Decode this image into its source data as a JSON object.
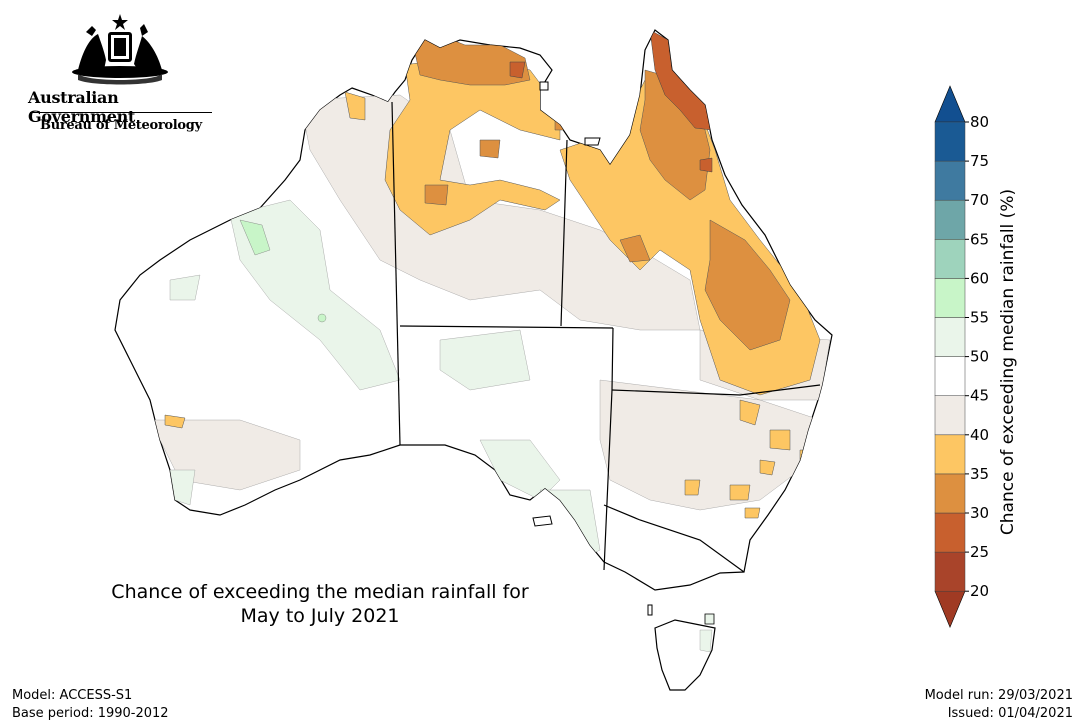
{
  "header": {
    "government": "Australian Government",
    "agency": "Bureau of Meteorology"
  },
  "map": {
    "title_line1": "Chance of exceeding the median rainfall for",
    "title_line2": "May to July 2021"
  },
  "legend": {
    "label": "Chance of exceeding median rainfall (%)",
    "ticks": [
      "20",
      "25",
      "30",
      "35",
      "40",
      "45",
      "50",
      "55",
      "60",
      "65",
      "70",
      "75",
      "80"
    ],
    "colors": [
      "#a9442a",
      "#c8602e",
      "#dd9040",
      "#fdc663",
      "#f0ebe6",
      "#ffffff",
      "#eaf5ea",
      "#c8f5c8",
      "#9ed3bc",
      "#6ea6a8",
      "#3f7aa0",
      "#1a5a94"
    ],
    "arrow_low_color": "#a03a23",
    "arrow_high_color": "#124f90"
  },
  "footer": {
    "model": "Model: ACCESS-S1",
    "base_period": "Base period: 1990-2012",
    "model_run": "Model run: 29/03/2021",
    "issued": "Issued: 01/04/2021"
  }
}
